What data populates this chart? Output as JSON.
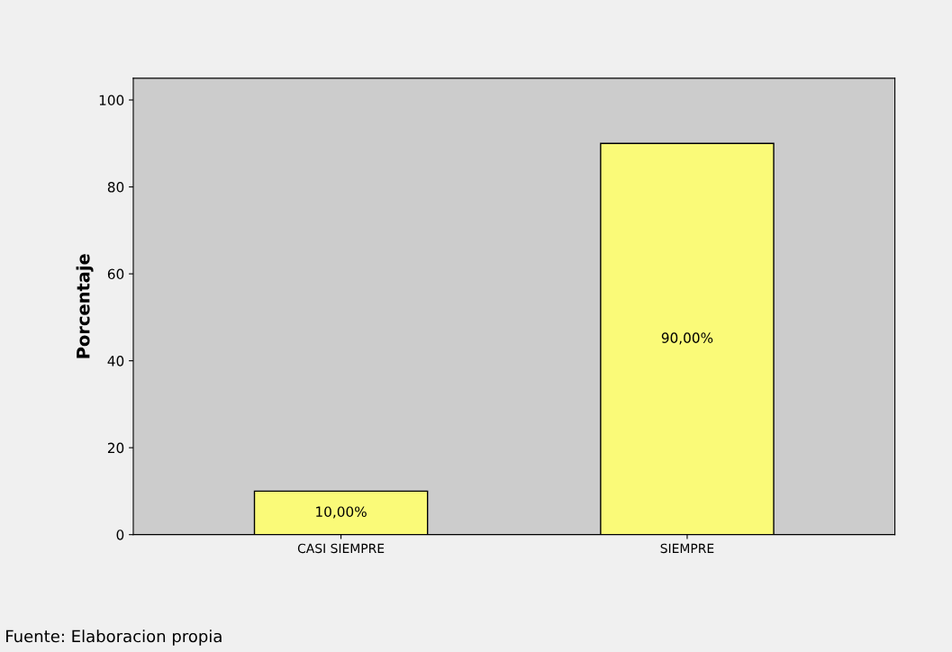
{
  "chart_data": {
    "type": "bar",
    "ylabel": "Porcentaje",
    "categories": [
      "CASI SIEMPRE",
      "SIEMPRE"
    ],
    "values": [
      10,
      90
    ],
    "value_labels": [
      "10,00%",
      "90,00%"
    ],
    "color": "#fafa78",
    "ylim": [
      0,
      105
    ],
    "yticks": [
      0,
      20,
      40,
      60,
      80,
      100
    ],
    "annotations": [
      "Fuente: Elaboracion propia"
    ]
  }
}
